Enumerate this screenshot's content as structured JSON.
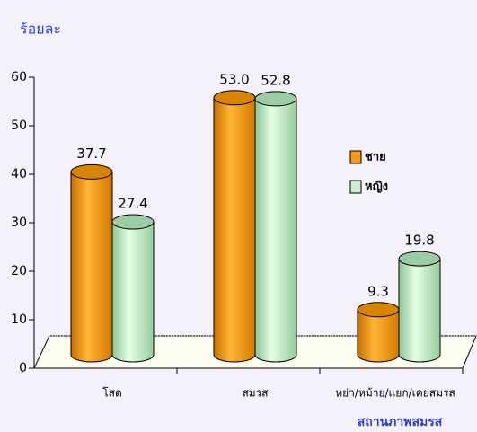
{
  "chart_data": {
    "type": "bar",
    "y_label": "ร้อยละ",
    "x_label": "สถานภาพสมรส",
    "categories": [
      "โสด",
      "สมรส",
      "หย่า/หม้าย/แยก/เคยสมรส"
    ],
    "series": [
      {
        "name": "ชาย",
        "color": "#f59a10",
        "values": [
          37.7,
          53.0,
          9.3
        ],
        "value_labels": [
          "37.7",
          "53.0",
          "9.3"
        ]
      },
      {
        "name": "หญิง",
        "color": "#c8f0c8",
        "values": [
          27.4,
          52.8,
          19.8
        ]
      }
    ],
    "ylim": [
      0,
      60
    ],
    "yticks": [
      0,
      10,
      20,
      30,
      40,
      50,
      60
    ],
    "legend": "right"
  }
}
